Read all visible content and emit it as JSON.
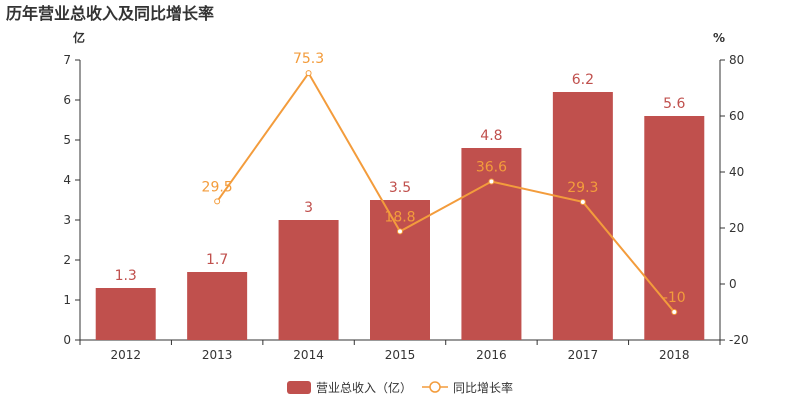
{
  "chart_data": {
    "type": "bar",
    "title": "历年营业总收入及同比增长率",
    "left_unit": "亿",
    "right_unit": "%",
    "categories": [
      "2012",
      "2013",
      "2014",
      "2015",
      "2016",
      "2017",
      "2018"
    ],
    "series": [
      {
        "name": "营业总收入（亿）",
        "type": "bar",
        "axis": "left",
        "color": "#c0504d",
        "values": [
          1.3,
          1.7,
          3,
          3.5,
          4.8,
          6.2,
          5.6
        ],
        "labels": [
          "1.3",
          "1.7",
          "3",
          "3.5",
          "4.8",
          "6.2",
          "5.6"
        ]
      },
      {
        "name": "同比增长率",
        "type": "line",
        "axis": "right",
        "color": "#f39c3c",
        "values": [
          null,
          29.5,
          75.3,
          18.8,
          36.6,
          29.3,
          -10
        ],
        "labels": [
          "",
          "29.5",
          "75.3",
          "18.8",
          "36.6",
          "29.3",
          "-10"
        ]
      }
    ],
    "left_axis": {
      "ylim": [
        0,
        7
      ],
      "ticks": [
        "0",
        "1",
        "2",
        "3",
        "4",
        "5",
        "6",
        "7"
      ]
    },
    "right_axis": {
      "ylim": [
        -20,
        80
      ],
      "ticks": [
        "-20",
        "0",
        "20",
        "40",
        "60",
        "80"
      ]
    },
    "grid": false,
    "legend_position": "bottom-center"
  }
}
